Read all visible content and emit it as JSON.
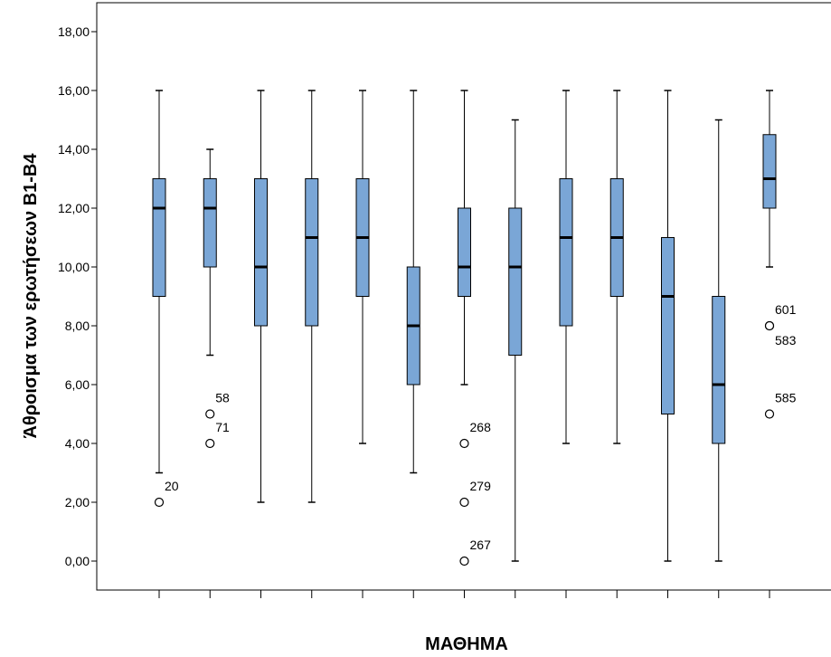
{
  "chart_data": {
    "type": "boxplot",
    "xlabel": "ΜΑΘΗΜΑ",
    "ylabel": "Άθροισμα των ερωτήσεων B1-B4",
    "ylim": [
      -1,
      19
    ],
    "yticks": [
      "0,00",
      "2,00",
      "4,00",
      "6,00",
      "8,00",
      "10,00",
      "12,00",
      "14,00",
      "16,00",
      "18,00"
    ],
    "ytick_values": [
      0,
      2,
      4,
      6,
      8,
      10,
      12,
      14,
      16,
      18
    ],
    "grid": false,
    "box_color": "#7aa6d6",
    "boxes": [
      {
        "min": 3,
        "q1": 9,
        "median": 12,
        "q3": 13,
        "max": 16,
        "outliers": [
          {
            "value": 2,
            "label": "20"
          }
        ]
      },
      {
        "min": 7,
        "q1": 10,
        "median": 12,
        "q3": 13,
        "max": 14,
        "outliers": [
          {
            "value": 5,
            "label": "58"
          },
          {
            "value": 4,
            "label": "71"
          }
        ]
      },
      {
        "min": 2,
        "q1": 8,
        "median": 10,
        "q3": 13,
        "max": 16,
        "outliers": []
      },
      {
        "min": 2,
        "q1": 8,
        "median": 11,
        "q3": 13,
        "max": 16,
        "outliers": []
      },
      {
        "min": 4,
        "q1": 9,
        "median": 11,
        "q3": 13,
        "max": 16,
        "outliers": []
      },
      {
        "min": 3,
        "q1": 6,
        "median": 8,
        "q3": 10,
        "max": 16,
        "outliers": []
      },
      {
        "min": 6,
        "q1": 9,
        "median": 10,
        "q3": 12,
        "max": 16,
        "outliers": [
          {
            "value": 4,
            "label": "268"
          },
          {
            "value": 2,
            "label": "279"
          },
          {
            "value": 0,
            "label": "267"
          }
        ]
      },
      {
        "min": 0,
        "q1": 7,
        "median": 10,
        "q3": 12,
        "max": 15,
        "outliers": []
      },
      {
        "min": 4,
        "q1": 8,
        "median": 11,
        "q3": 13,
        "max": 16,
        "outliers": []
      },
      {
        "min": 4,
        "q1": 9,
        "median": 11,
        "q3": 13,
        "max": 16,
        "outliers": []
      },
      {
        "min": 0,
        "q1": 5,
        "median": 9,
        "q3": 11,
        "max": 16,
        "outliers": []
      },
      {
        "min": 0,
        "q1": 4,
        "median": 6,
        "q3": 9,
        "max": 15,
        "outliers": []
      },
      {
        "min": 10,
        "q1": 12,
        "median": 13,
        "q3": 14.5,
        "max": 16,
        "outliers": [
          {
            "value": 8,
            "label": "601"
          },
          {
            "value": 8,
            "label": "583"
          },
          {
            "value": 5,
            "label": "585"
          }
        ]
      }
    ]
  }
}
